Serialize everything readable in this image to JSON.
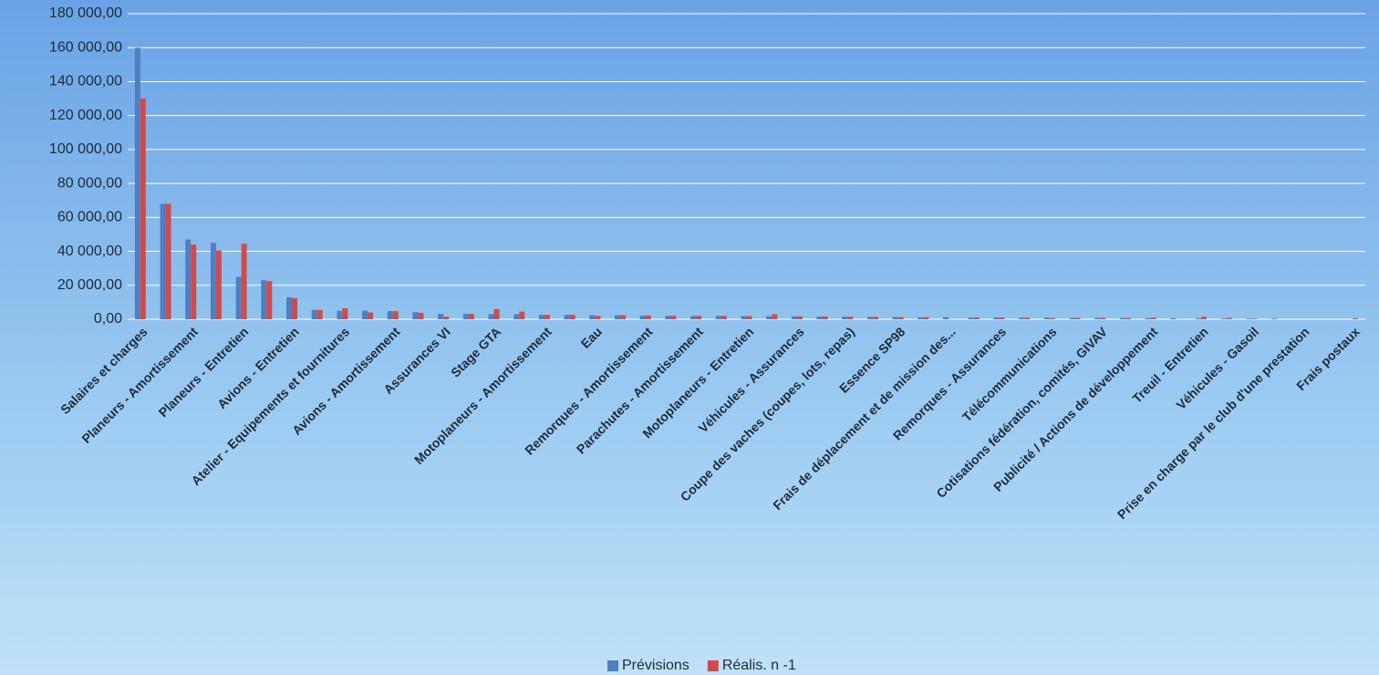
{
  "chart_data": {
    "type": "bar",
    "categories": [
      "Salaires et charges",
      null,
      "Planeurs - Amortissement",
      null,
      "Planeurs - Entretien",
      null,
      "Avions - Entretien",
      null,
      "Atelier - Equipements et fournitures",
      null,
      "Avions - Amortissement",
      null,
      "Assurances VI",
      null,
      "Stage GTA",
      null,
      "Motoplaneurs - Amortissement",
      null,
      "Eau",
      null,
      "Remorques - Amortissement",
      null,
      "Parachutes - Amortissement",
      null,
      "Motoplaneurs - Entretien",
      null,
      "Véhicules - Assurances",
      null,
      "Coupe des vaches (coupes, lots, repas)",
      null,
      "Essence SP98",
      null,
      "Frais de déplacement et de mission des...",
      null,
      "Remorques - Assurances",
      null,
      "Télécommunications",
      null,
      "Cotisations fédération, comités, GIVAV",
      null,
      "Publicité / Actions de développement",
      null,
      "Treuil - Entretien",
      null,
      "Véhicules - Gasoil",
      null,
      "Prise en charge par le club d'une prestation",
      null,
      "Frais postaux"
    ],
    "series": [
      {
        "name": "Prévisions",
        "color": "#4f7fc2",
        "values": [
          160000,
          68000,
          47000,
          45000,
          25000,
          23000,
          13000,
          5500,
          5000,
          5000,
          4800,
          4200,
          3200,
          3200,
          3000,
          3000,
          2600,
          2600,
          2400,
          2400,
          2200,
          2000,
          2000,
          2000,
          1800,
          1800,
          1700,
          1600,
          1500,
          1400,
          1300,
          1200,
          1200,
          1000,
          1000,
          900,
          900,
          800,
          800,
          700,
          600,
          500,
          500,
          400,
          300,
          300,
          0,
          0,
          0
        ]
      },
      {
        "name": "Réalis. n -1",
        "color": "#d24b4b",
        "values": [
          130000,
          68000,
          44000,
          40500,
          44500,
          22500,
          12500,
          5500,
          6500,
          4000,
          4800,
          3800,
          1500,
          3200,
          6000,
          4500,
          2600,
          2600,
          2000,
          2400,
          2200,
          2000,
          2000,
          2000,
          1800,
          3000,
          1700,
          1600,
          1500,
          1400,
          1300,
          1200,
          0,
          1000,
          1000,
          900,
          700,
          800,
          800,
          700,
          900,
          0,
          1500,
          800,
          300,
          0,
          0,
          0,
          500
        ]
      }
    ],
    "ylim": [
      0,
      180000
    ],
    "yticks": [
      {
        "value": 0,
        "label": "0,00"
      },
      {
        "value": 20000,
        "label": "20 000,00"
      },
      {
        "value": 40000,
        "label": "40 000,00"
      },
      {
        "value": 60000,
        "label": "60 000,00"
      },
      {
        "value": 80000,
        "label": "80 000,00"
      },
      {
        "value": 100000,
        "label": "100 000,00"
      },
      {
        "value": 120000,
        "label": "120 000,00"
      },
      {
        "value": 140000,
        "label": "140 000,00"
      },
      {
        "value": 160000,
        "label": "160 000,00"
      },
      {
        "value": 180000,
        "label": "180 000,00"
      }
    ],
    "grid": true,
    "legend": "bottom"
  }
}
